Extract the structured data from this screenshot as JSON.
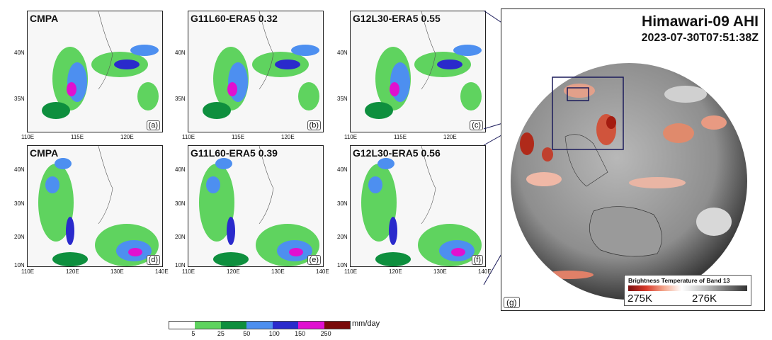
{
  "panels": [
    {
      "title": "CMPA",
      "label": "(a)",
      "region": "north",
      "lats": [
        "40N",
        "35N"
      ],
      "lons": [
        "110E",
        "115E",
        "120E"
      ]
    },
    {
      "title": "G11L60-ERA5 0.32",
      "label": "(b)",
      "region": "north",
      "lats": [
        "40N",
        "35N"
      ],
      "lons": [
        "110E",
        "115E",
        "120E"
      ]
    },
    {
      "title": "G12L30-ERA5 0.55",
      "label": "(c)",
      "region": "north",
      "lats": [
        "40N",
        "35N"
      ],
      "lons": [
        "110E",
        "115E",
        "120E"
      ]
    },
    {
      "title": "CMPA",
      "label": "(d)",
      "region": "south",
      "lats": [
        "40N",
        "30N",
        "20N",
        "10N"
      ],
      "lons": [
        "110E",
        "120E",
        "130E",
        "140E"
      ]
    },
    {
      "title": "G11L60-ERA5 0.39",
      "label": "(e)",
      "region": "south",
      "lats": [
        "40N",
        "30N",
        "20N",
        "10N"
      ],
      "lons": [
        "110E",
        "120E",
        "130E",
        "140E"
      ]
    },
    {
      "title": "G12L30-ERA5 0.56",
      "label": "(f)",
      "region": "south",
      "lats": [
        "40N",
        "30N",
        "20N",
        "10N"
      ],
      "lons": [
        "110E",
        "120E",
        "130E",
        "140E"
      ]
    }
  ],
  "colorbar": {
    "unit": "mm/day",
    "ticks": [
      "5",
      "25",
      "50",
      "100",
      "150",
      "250"
    ],
    "colors": [
      "#ffffff",
      "#5fd35f",
      "#0e8f3e",
      "#4d8ff0",
      "#2a2acc",
      "#e010d0",
      "#7a0a0a"
    ]
  },
  "satellite": {
    "title": "Himawari-09 AHI",
    "time": "2023-07-30T07:51:38Z",
    "label": "(g)",
    "bar_title": "Brightness Temperature of Band 13",
    "bar_low": "275K",
    "bar_high": "276K"
  }
}
